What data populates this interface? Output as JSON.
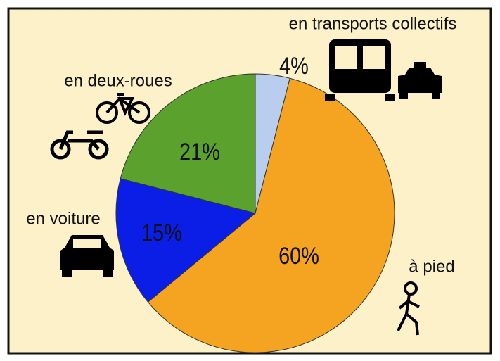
{
  "chart_data": {
    "type": "pie",
    "categories": [
      "en transports collectifs",
      "à pied",
      "en voiture",
      "en deux-roues"
    ],
    "values": [
      4,
      60,
      15,
      21
    ],
    "value_labels": [
      "4%",
      "60%",
      "15%",
      "21%"
    ],
    "colors": [
      "#b9cdee",
      "#f5a422",
      "#0b1ee6",
      "#5ba12e"
    ]
  }
}
